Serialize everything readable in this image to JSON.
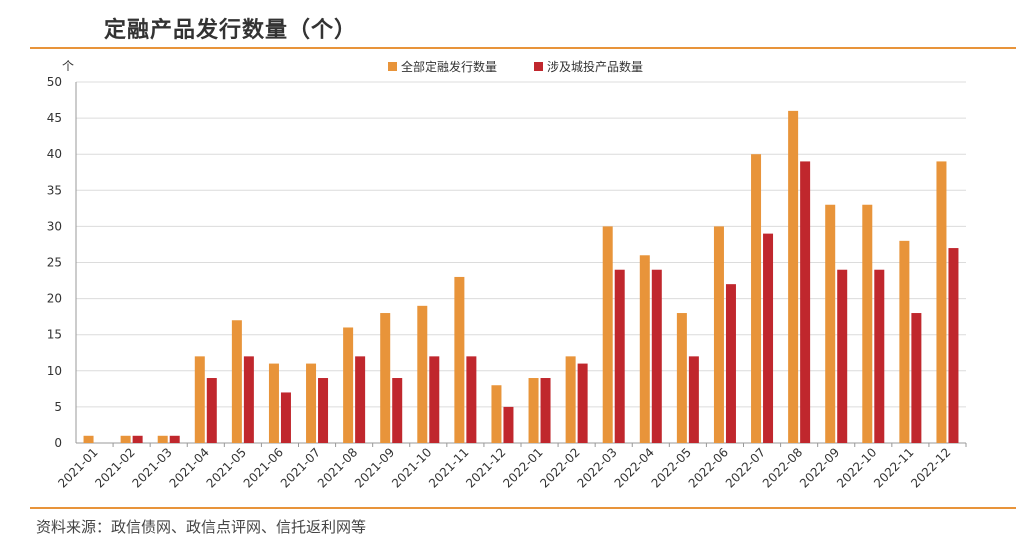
{
  "title": "定融产品发行数量（个）",
  "source": "资料来源：政信债网、政信点评网、信托返利网等",
  "chart_data": {
    "type": "bar",
    "y_unit": "个",
    "ylim": [
      0,
      50
    ],
    "yticks": [
      0,
      5,
      10,
      15,
      20,
      25,
      30,
      35,
      40,
      45,
      50
    ],
    "grid": true,
    "legend_position": "top-center",
    "categories": [
      "2021-01",
      "2021-02",
      "2021-03",
      "2021-04",
      "2021-05",
      "2021-06",
      "2021-07",
      "2021-08",
      "2021-09",
      "2021-10",
      "2021-11",
      "2021-12",
      "2022-01",
      "2022-02",
      "2022-03",
      "2022-04",
      "2022-05",
      "2022-06",
      "2022-07",
      "2022-08",
      "2022-09",
      "2022-10",
      "2022-11",
      "2022-12"
    ],
    "series": [
      {
        "name": "全部定融发行数量",
        "color": "#e8943a",
        "values": [
          1,
          1,
          1,
          12,
          17,
          11,
          11,
          16,
          18,
          19,
          23,
          8,
          9,
          12,
          30,
          26,
          18,
          30,
          40,
          46,
          33,
          33,
          28,
          39
        ]
      },
      {
        "name": "涉及城投产品数量",
        "color": "#c0272d",
        "values": [
          0,
          1,
          1,
          9,
          12,
          7,
          9,
          12,
          9,
          12,
          12,
          5,
          9,
          11,
          24,
          24,
          12,
          22,
          29,
          39,
          24,
          24,
          18,
          27
        ]
      }
    ]
  }
}
